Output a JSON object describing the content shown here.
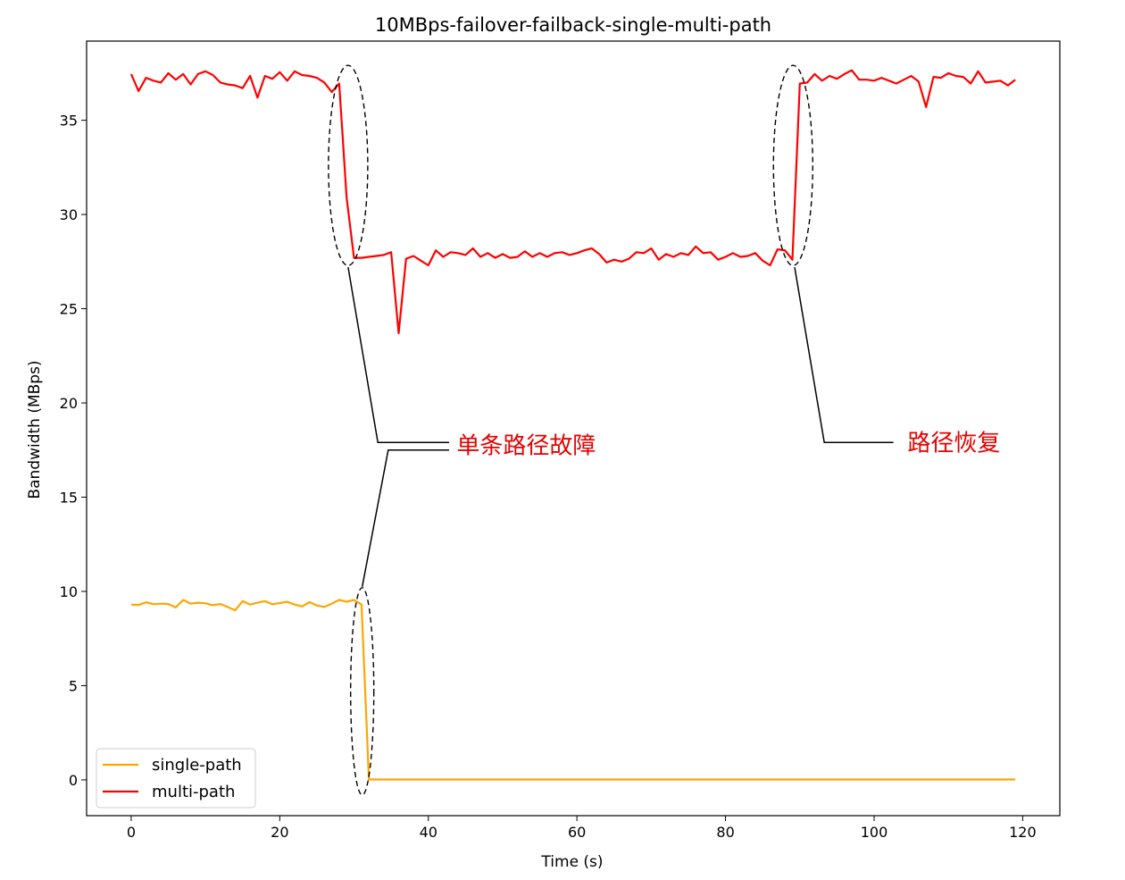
{
  "chart_data": {
    "type": "line",
    "title": "10MBps-failover-failback-single-multi-path",
    "xlabel": "Time (s)",
    "ylabel": "Bandwidth (MBps)",
    "xlim": [
      -6,
      125
    ],
    "ylim": [
      -1.9,
      39.2
    ],
    "xticks": [
      0,
      20,
      40,
      60,
      80,
      100,
      120
    ],
    "yticks": [
      0,
      5,
      10,
      15,
      20,
      25,
      30,
      35
    ],
    "grid": false,
    "legend": {
      "placement": "lower-left",
      "entries": [
        "single-path",
        "multi-path"
      ]
    },
    "series": [
      {
        "name": "single-path",
        "color": "#ffa500",
        "x": [
          0,
          1,
          2,
          3,
          4,
          5,
          6,
          7,
          8,
          9,
          10,
          11,
          12,
          13,
          14,
          15,
          16,
          17,
          18,
          19,
          20,
          21,
          22,
          23,
          24,
          25,
          26,
          27,
          28,
          29,
          30,
          31,
          32,
          119
        ],
        "y": [
          9.3,
          9.28,
          9.42,
          9.32,
          9.35,
          9.33,
          9.15,
          9.55,
          9.35,
          9.4,
          9.37,
          9.27,
          9.33,
          9.17,
          9.0,
          9.48,
          9.3,
          9.4,
          9.48,
          9.32,
          9.38,
          9.45,
          9.3,
          9.2,
          9.43,
          9.25,
          9.18,
          9.35,
          9.55,
          9.45,
          9.55,
          9.3,
          0.02,
          0.02
        ]
      },
      {
        "name": "multi-path",
        "color": "#ff0000",
        "x": [
          0,
          1,
          2,
          3,
          4,
          5,
          6,
          7,
          8,
          9,
          10,
          11,
          12,
          13,
          14,
          15,
          16,
          17,
          18,
          19,
          20,
          21,
          22,
          23,
          24,
          25,
          26,
          27,
          28,
          29,
          30,
          31,
          32,
          33,
          34,
          35,
          36,
          37,
          38,
          39,
          40,
          41,
          42,
          43,
          44,
          45,
          46,
          47,
          48,
          49,
          50,
          51,
          52,
          53,
          54,
          55,
          56,
          57,
          58,
          59,
          60,
          61,
          62,
          63,
          64,
          65,
          66,
          67,
          68,
          69,
          70,
          71,
          72,
          73,
          74,
          75,
          76,
          77,
          78,
          79,
          80,
          81,
          82,
          83,
          84,
          85,
          86,
          87,
          88,
          89,
          90,
          91,
          92,
          93,
          94,
          95,
          96,
          97,
          98,
          99,
          100,
          101,
          102,
          103,
          104,
          105,
          106,
          107,
          108,
          109,
          110,
          111,
          112,
          113,
          114,
          115,
          116,
          117,
          118,
          119
        ],
        "y": [
          37.45,
          36.55,
          37.25,
          37.1,
          37.0,
          37.5,
          37.15,
          37.45,
          36.9,
          37.45,
          37.6,
          37.4,
          37.0,
          36.9,
          36.85,
          36.7,
          37.35,
          36.2,
          37.35,
          37.2,
          37.55,
          37.1,
          37.6,
          37.4,
          37.35,
          37.25,
          37.0,
          36.5,
          36.95,
          30.9,
          27.7,
          27.7,
          27.75,
          27.8,
          27.85,
          28.0,
          23.7,
          27.65,
          27.8,
          27.55,
          27.3,
          28.1,
          27.75,
          28.0,
          27.95,
          27.85,
          28.2,
          27.75,
          27.95,
          27.7,
          27.9,
          27.7,
          27.75,
          28.05,
          27.75,
          27.95,
          27.75,
          27.95,
          28.0,
          27.85,
          27.95,
          28.1,
          28.2,
          27.9,
          27.45,
          27.6,
          27.5,
          27.65,
          28.0,
          27.95,
          28.2,
          27.6,
          27.9,
          27.75,
          27.95,
          27.85,
          28.3,
          27.95,
          28.0,
          27.6,
          27.75,
          27.95,
          27.75,
          27.8,
          27.95,
          27.55,
          27.3,
          28.15,
          28.1,
          27.6,
          36.95,
          37.0,
          37.45,
          37.1,
          37.35,
          37.2,
          37.45,
          37.65,
          37.15,
          37.15,
          37.1,
          37.25,
          37.1,
          36.95,
          37.15,
          37.35,
          37.05,
          35.7,
          37.3,
          37.25,
          37.5,
          37.35,
          37.3,
          36.95,
          37.6,
          37.0,
          37.05,
          37.1,
          36.85,
          37.15
        ]
      }
    ],
    "annotations": [
      {
        "text": "单条路径故障",
        "color": "#e60000"
      },
      {
        "text": "路径恢复",
        "color": "#e60000"
      }
    ]
  }
}
